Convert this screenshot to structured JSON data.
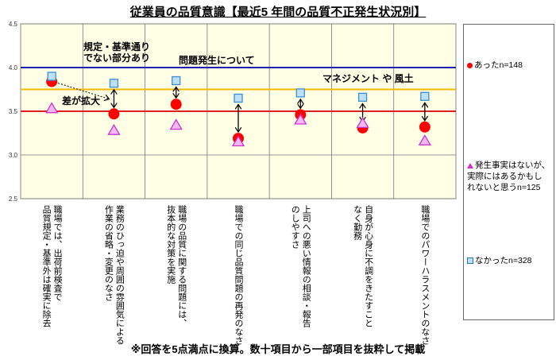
{
  "chart_data": {
    "type": "scatter",
    "title": "従業員の品質意識【最近5 年間の品質不正発生状況別】",
    "ylim": [
      2.5,
      4.5
    ],
    "yticks": [
      "2.5",
      "3.0",
      "3.5",
      "4.0",
      "4.5"
    ],
    "grid": true,
    "legend_position": "right",
    "categories": [
      "職場では、出荷前検査で\n品質規定・基準外は確実に除去",
      "業務のひっ迫や周囲の雰囲気による\n作業の省略・変更のなさ",
      "職場の品質に関する問題には、\n抜本的な対策を実施",
      "職場での同じ品質問題の再発のなさ",
      "上司への悪い情報の相談・報告\nのしやすさ",
      "自身が心身に不調をきたすこと\nなく勤務",
      "職場でのパワーハラスメントのなさ"
    ],
    "series": [
      {
        "name": "あったn=148",
        "marker": "circle",
        "color": "#ff0000",
        "values": [
          3.84,
          3.47,
          3.58,
          3.19,
          3.46,
          3.31,
          3.32
        ]
      },
      {
        "name": "発生事実はないが、\n実際にはあるかもし\nれないと思うn=125",
        "marker": "triangle",
        "color": "#cc33cc",
        "values": [
          3.53,
          3.28,
          3.34,
          3.15,
          3.4,
          3.36,
          3.16
        ]
      },
      {
        "name": "なかったn=328",
        "marker": "square",
        "color": "#5b9bd5",
        "values": [
          3.9,
          3.82,
          3.85,
          3.65,
          3.71,
          3.66,
          3.67
        ]
      }
    ],
    "reference_lines": [
      {
        "y": 4.0,
        "color": "#1f1fb4"
      },
      {
        "y": 3.75,
        "color": "#f5b800"
      },
      {
        "y": 3.5,
        "color": "#e02020"
      }
    ],
    "annotations": {
      "rule_gap": "規定・基準通り\nでない部分あり",
      "problem": "問題発生について",
      "management": "マネジメント や 風土",
      "gap_widened": "差が拡大"
    },
    "plot_bg": "#ffffe6"
  },
  "footnote": "※回答を5点満点に換算。数十項目から一部項目を抜粋して掲載"
}
